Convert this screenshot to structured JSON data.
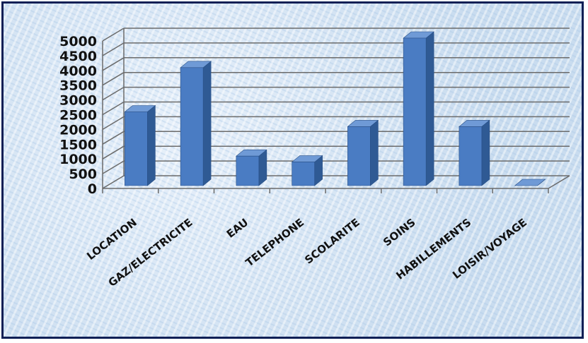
{
  "chart_data": {
    "type": "bar",
    "categories": [
      "LOCATION",
      "GAZ/ELECTRICITE",
      "EAU",
      "TELEPHONE",
      "SCOLARITE",
      "SOINS",
      "HABILLEMENTS",
      "LOISIR/VOYAGE"
    ],
    "values": [
      2500,
      4000,
      1000,
      800,
      2000,
      5000,
      2000,
      0
    ],
    "yticks": [
      "0",
      "500",
      "1000",
      "1500",
      "2000",
      "2500",
      "3000",
      "3500",
      "4000",
      "4500",
      "5000"
    ],
    "ylim": [
      0,
      5000
    ],
    "grid": true,
    "three_d": true,
    "legend": "none",
    "colors": {
      "bar_front": "#4a7cc3",
      "bar_side": "#2f5a94",
      "bar_top": "#6f9ad6",
      "border": "#0d1f55"
    }
  }
}
